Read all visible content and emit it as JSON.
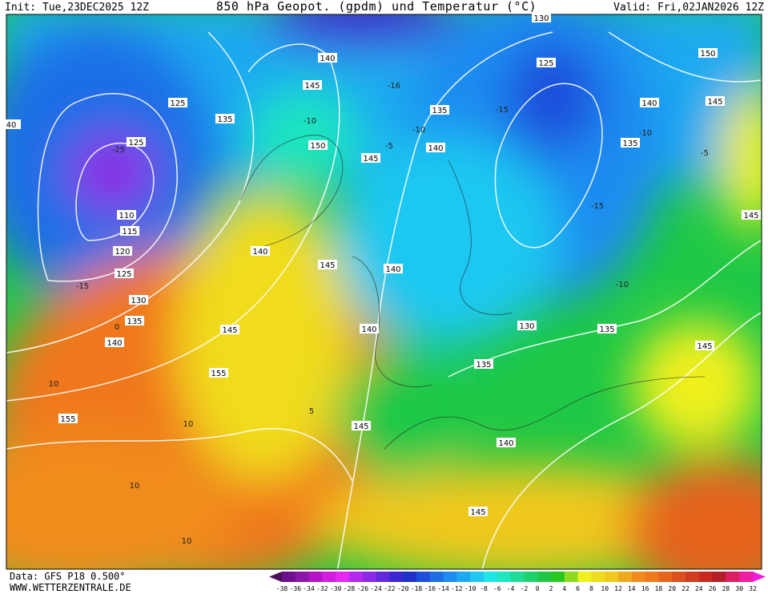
{
  "header": {
    "init": "Init: Tue,23DEC2025 12Z",
    "title": "850 hPa Geopot. (gpdm) und Temperatur (°C)",
    "valid": "Valid: Fri,02JAN2026 12Z"
  },
  "footer": {
    "data": "Data: GFS P18 0.500°",
    "site": "WWW.WETTERZENTRALE.DE"
  },
  "color_scale": {
    "labels": [
      -38,
      -36,
      -34,
      -32,
      -30,
      -28,
      -26,
      -24,
      -22,
      -20,
      -18,
      -16,
      -14,
      -12,
      -10,
      -8,
      -6,
      -4,
      -2,
      0,
      2,
      4,
      6,
      8,
      10,
      12,
      14,
      16,
      18,
      20,
      22,
      24,
      26,
      28,
      30,
      32
    ],
    "colors": [
      "#4b0f5a",
      "#6e0f8c",
      "#8c14a8",
      "#b414c8",
      "#d21edc",
      "#e628f0",
      "#b428f0",
      "#8c28e6",
      "#6428dc",
      "#3c28d2",
      "#1e32c8",
      "#1e50dc",
      "#1e6ee6",
      "#1e8cf0",
      "#1eaaf0",
      "#1ec8f0",
      "#1ee6e6",
      "#1ee6be",
      "#1edc96",
      "#1ed26e",
      "#1ec846",
      "#28c81e",
      "#8cdc1e",
      "#f0f01e",
      "#f0dc1e",
      "#f0c81e",
      "#f0aa1e",
      "#f08c1e",
      "#f0781e",
      "#e6641e",
      "#dc501e",
      "#d23c1e",
      "#c8281e",
      "#b41e28",
      "#dc1e64",
      "#f01ea0",
      "#f01edc"
    ]
  },
  "geopotential_labels": [
    "130",
    "140",
    "125",
    "150",
    "145",
    "140",
    "145",
    "125",
    "135",
    "135",
    "150",
    "140",
    "145",
    "135",
    "125",
    "110",
    "115",
    "120",
    "125",
    "130",
    "135",
    "140",
    "140",
    "145",
    "140",
    "145",
    "145",
    "140",
    "130",
    "135",
    "145",
    "135",
    "155",
    "145",
    "140",
    "145",
    "155",
    "40"
  ],
  "temperature_labels": [
    "-10",
    "-15",
    "-16",
    "-10",
    "-10",
    "-5",
    "-15",
    "-5",
    "-25",
    "-15",
    "-10",
    "0",
    "10",
    "10",
    "10",
    "10",
    "5"
  ]
}
